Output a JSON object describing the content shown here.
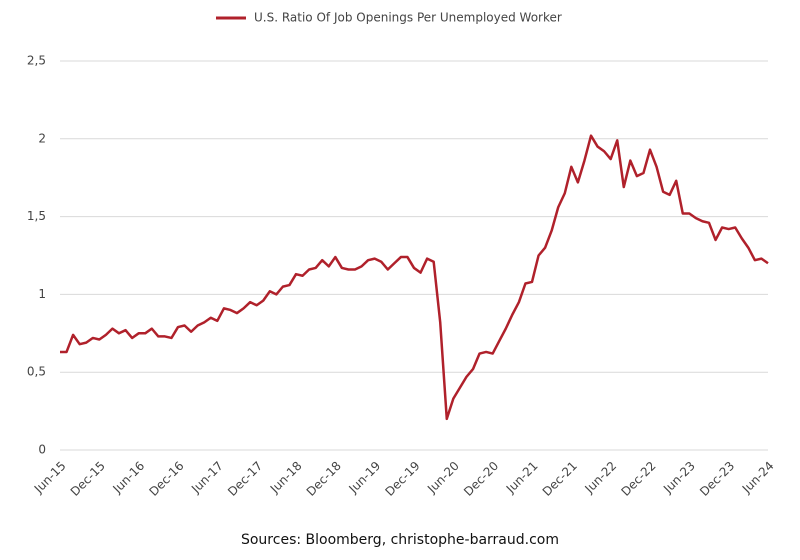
{
  "chart_data": {
    "type": "line",
    "series": [
      {
        "name": "U.S. Ratio Of Job Openings Per Unemployed Worker",
        "color": "#b0212b",
        "values": [
          0.63,
          0.63,
          0.74,
          0.68,
          0.69,
          0.72,
          0.71,
          0.74,
          0.78,
          0.75,
          0.77,
          0.72,
          0.75,
          0.75,
          0.78,
          0.73,
          0.73,
          0.72,
          0.79,
          0.8,
          0.76,
          0.8,
          0.82,
          0.85,
          0.83,
          0.91,
          0.9,
          0.88,
          0.91,
          0.95,
          0.93,
          0.96,
          1.02,
          1.0,
          1.05,
          1.06,
          1.13,
          1.12,
          1.16,
          1.17,
          1.22,
          1.18,
          1.24,
          1.17,
          1.16,
          1.16,
          1.18,
          1.22,
          1.23,
          1.21,
          1.16,
          1.2,
          1.24,
          1.24,
          1.17,
          1.14,
          1.23,
          1.21,
          0.82,
          0.2,
          0.33,
          0.4,
          0.47,
          0.52,
          0.62,
          0.63,
          0.62,
          0.7,
          0.78,
          0.87,
          0.95,
          1.07,
          1.08,
          1.25,
          1.3,
          1.41,
          1.56,
          1.65,
          1.82,
          1.72,
          1.86,
          2.02,
          1.95,
          1.92,
          1.87,
          1.99,
          1.69,
          1.86,
          1.76,
          1.78,
          1.93,
          1.82,
          1.66,
          1.64,
          1.73,
          1.52,
          1.52,
          1.49,
          1.47,
          1.46,
          1.35,
          1.43,
          1.42,
          1.43,
          1.36,
          1.3,
          1.22,
          1.23,
          1.2
        ]
      }
    ],
    "categories": [
      "Jun-15",
      null,
      null,
      null,
      null,
      null,
      "Dec-15",
      null,
      null,
      null,
      null,
      null,
      "Jun-16",
      null,
      null,
      null,
      null,
      null,
      "Dec-16",
      null,
      null,
      null,
      null,
      null,
      "Jun-17",
      null,
      null,
      null,
      null,
      null,
      "Dec-17",
      null,
      null,
      null,
      null,
      null,
      "Jun-18",
      null,
      null,
      null,
      null,
      null,
      "Dec-18",
      null,
      null,
      null,
      null,
      null,
      "Jun-19",
      null,
      null,
      null,
      null,
      null,
      "Dec-19",
      null,
      null,
      null,
      null,
      null,
      "Jun-20",
      null,
      null,
      null,
      null,
      null,
      "Dec-20",
      null,
      null,
      null,
      null,
      null,
      "Jun-21",
      null,
      null,
      null,
      null,
      null,
      "Dec-21",
      null,
      null,
      null,
      null,
      null,
      "Jun-22",
      null,
      null,
      null,
      null,
      null,
      "Dec-22",
      null,
      null,
      null,
      null,
      null,
      "Jun-23",
      null,
      null,
      null,
      null,
      null,
      "Dec-23",
      null,
      null,
      null,
      null,
      null,
      "Jun-24"
    ],
    "ylim": [
      0,
      2.5
    ],
    "yticks": [
      0,
      {
        "value": 0.5,
        "label": "0,5"
      },
      1,
      {
        "value": 1.5,
        "label": "1,5"
      },
      2,
      {
        "value": 2.5,
        "label": "2,5"
      }
    ],
    "grid": true,
    "source": "Sources: Bloomberg, christophe-barraud.com"
  }
}
